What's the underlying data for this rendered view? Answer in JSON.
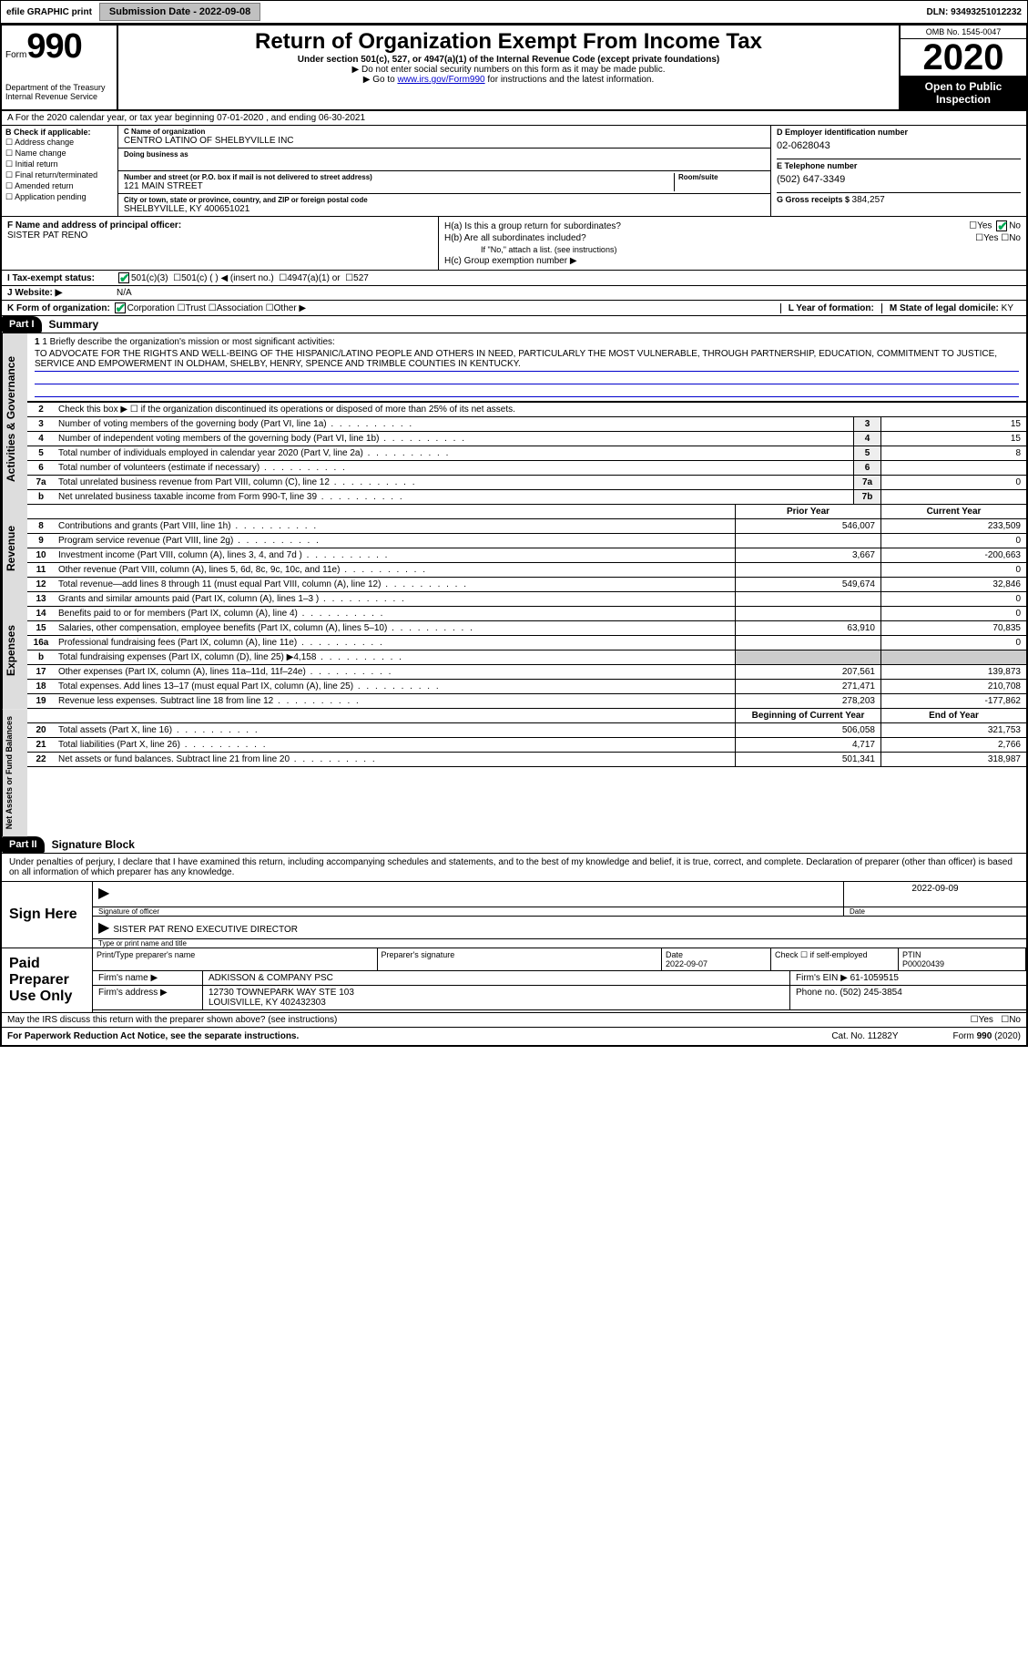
{
  "top": {
    "efile": "efile GRAPHIC print",
    "submission_label": "Submission Date - 2022-09-08",
    "dln": "DLN: 93493251012232"
  },
  "header": {
    "form_prefix": "Form",
    "form_no": "990",
    "dept1": "Department of the Treasury",
    "dept2": "Internal Revenue Service",
    "title": "Return of Organization Exempt From Income Tax",
    "subtitle": "Under section 501(c), 527, or 4947(a)(1) of the Internal Revenue Code (except private foundations)",
    "note1": "▶ Do not enter social security numbers on this form as it may be made public.",
    "note2_pre": "▶ Go to ",
    "note2_link": "www.irs.gov/Form990",
    "note2_post": " for instructions and the latest information.",
    "omb": "OMB No. 1545-0047",
    "year": "2020",
    "open": "Open to Public Inspection"
  },
  "section_a": "A   For the 2020 calendar year, or tax year beginning 07-01-2020    , and ending 06-30-2021",
  "col_b": {
    "hdr": "B Check if applicable:",
    "opts": [
      "Address change",
      "Name change",
      "Initial return",
      "Final return/terminated",
      "Amended return",
      "Application pending"
    ]
  },
  "col_c": {
    "name_lbl": "C Name of organization",
    "name": "CENTRO LATINO OF SHELBYVILLE INC",
    "dba_lbl": "Doing business as",
    "addr_lbl": "Number and street (or P.O. box if mail is not delivered to street address)",
    "room_lbl": "Room/suite",
    "addr": "121 MAIN STREET",
    "city_lbl": "City or town, state or province, country, and ZIP or foreign postal code",
    "city": "SHELBYVILLE, KY  400651021"
  },
  "col_de": {
    "d_lbl": "D Employer identification number",
    "d_val": "02-0628043",
    "e_lbl": "E Telephone number",
    "e_val": "(502) 647-3349",
    "g_lbl": "G Gross receipts $ ",
    "g_val": "384,257"
  },
  "f": {
    "lbl": "F  Name and address of principal officer:",
    "val": "SISTER PAT RENO"
  },
  "h": {
    "ha": "H(a)  Is this a group return for subordinates?",
    "hb": "H(b)  Are all subordinates included?",
    "hb_note": "If \"No,\" attach a list. (see instructions)",
    "hc": "H(c)  Group exemption number ▶",
    "yes": "Yes",
    "no": "No"
  },
  "i": {
    "lbl": "I   Tax-exempt status:",
    "o1": "501(c)(3)",
    "o2": "501(c) (   ) ◀ (insert no.)",
    "o3": "4947(a)(1) or",
    "o4": "527"
  },
  "j": {
    "lbl": "J   Website: ▶",
    "val": "N/A"
  },
  "k": {
    "lbl": "K Form of organization:",
    "opts": [
      "Corporation",
      "Trust",
      "Association",
      "Other ▶"
    ]
  },
  "l": {
    "lbl": "L Year of formation:",
    "val": ""
  },
  "m": {
    "lbl": "M State of legal domicile: ",
    "val": "KY"
  },
  "part1": {
    "hdr": "Part I",
    "title": "Summary",
    "line1_lbl": "1  Briefly describe the organization's mission or most significant activities:",
    "mission": "TO ADVOCATE FOR THE RIGHTS AND WELL-BEING OF THE HISPANIC/LATINO PEOPLE AND OTHERS IN NEED, PARTICULARLY THE MOST VULNERABLE, THROUGH PARTNERSHIP, EDUCATION, COMMITMENT TO JUSTICE, SERVICE AND EMPOWERMENT IN OLDHAM, SHELBY, HENRY, SPENCE AND TRIMBLE COUNTIES IN KENTUCKY.",
    "line2": "Check this box ▶ ☐ if the organization discontinued its operations or disposed of more than 25% of its net assets.",
    "gov_lines": [
      {
        "n": "3",
        "t": "Number of voting members of the governing body (Part VI, line 1a)",
        "b": "3",
        "v": "15"
      },
      {
        "n": "4",
        "t": "Number of independent voting members of the governing body (Part VI, line 1b)",
        "b": "4",
        "v": "15"
      },
      {
        "n": "5",
        "t": "Total number of individuals employed in calendar year 2020 (Part V, line 2a)",
        "b": "5",
        "v": "8"
      },
      {
        "n": "6",
        "t": "Total number of volunteers (estimate if necessary)",
        "b": "6",
        "v": ""
      },
      {
        "n": "7a",
        "t": "Total unrelated business revenue from Part VIII, column (C), line 12",
        "b": "7a",
        "v": "0"
      },
      {
        "n": "b",
        "t": "Net unrelated business taxable income from Form 990-T, line 39",
        "b": "7b",
        "v": ""
      }
    ],
    "py_hdr": "Prior Year",
    "cy_hdr": "Current Year",
    "rev_lines": [
      {
        "n": "8",
        "t": "Contributions and grants (Part VIII, line 1h)",
        "p": "546,007",
        "c": "233,509"
      },
      {
        "n": "9",
        "t": "Program service revenue (Part VIII, line 2g)",
        "p": "",
        "c": "0"
      },
      {
        "n": "10",
        "t": "Investment income (Part VIII, column (A), lines 3, 4, and 7d )",
        "p": "3,667",
        "c": "-200,663"
      },
      {
        "n": "11",
        "t": "Other revenue (Part VIII, column (A), lines 5, 6d, 8c, 9c, 10c, and 11e)",
        "p": "",
        "c": "0"
      },
      {
        "n": "12",
        "t": "Total revenue—add lines 8 through 11 (must equal Part VIII, column (A), line 12)",
        "p": "549,674",
        "c": "32,846"
      }
    ],
    "exp_lines": [
      {
        "n": "13",
        "t": "Grants and similar amounts paid (Part IX, column (A), lines 1–3 )",
        "p": "",
        "c": "0"
      },
      {
        "n": "14",
        "t": "Benefits paid to or for members (Part IX, column (A), line 4)",
        "p": "",
        "c": "0"
      },
      {
        "n": "15",
        "t": "Salaries, other compensation, employee benefits (Part IX, column (A), lines 5–10)",
        "p": "63,910",
        "c": "70,835"
      },
      {
        "n": "16a",
        "t": "Professional fundraising fees (Part IX, column (A), line 11e)",
        "p": "",
        "c": "0"
      },
      {
        "n": "b",
        "t": "Total fundraising expenses (Part IX, column (D), line 25) ▶4,158",
        "p": "—",
        "c": "—"
      },
      {
        "n": "17",
        "t": "Other expenses (Part IX, column (A), lines 11a–11d, 11f–24e)",
        "p": "207,561",
        "c": "139,873"
      },
      {
        "n": "18",
        "t": "Total expenses. Add lines 13–17 (must equal Part IX, column (A), line 25)",
        "p": "271,471",
        "c": "210,708"
      },
      {
        "n": "19",
        "t": "Revenue less expenses. Subtract line 18 from line 12",
        "p": "278,203",
        "c": "-177,862"
      }
    ],
    "boy_hdr": "Beginning of Current Year",
    "eoy_hdr": "End of Year",
    "na_lines": [
      {
        "n": "20",
        "t": "Total assets (Part X, line 16)",
        "p": "506,058",
        "c": "321,753"
      },
      {
        "n": "21",
        "t": "Total liabilities (Part X, line 26)",
        "p": "4,717",
        "c": "2,766"
      },
      {
        "n": "22",
        "t": "Net assets or fund balances. Subtract line 21 from line 20",
        "p": "501,341",
        "c": "318,987"
      }
    ],
    "side_gov": "Activities & Governance",
    "side_rev": "Revenue",
    "side_exp": "Expenses",
    "side_na": "Net Assets or Fund Balances"
  },
  "part2": {
    "hdr": "Part II",
    "title": "Signature Block",
    "decl": "Under penalties of perjury, I declare that I have examined this return, including accompanying schedules and statements, and to the best of my knowledge and belief, it is true, correct, and complete. Declaration of preparer (other than officer) is based on all information of which preparer has any knowledge.",
    "sign_here": "Sign Here",
    "sig_of_officer": "Signature of officer",
    "sig_date": "2022-09-09",
    "date_lbl": "Date",
    "officer_name": "SISTER PAT RENO  EXECUTIVE DIRECTOR",
    "type_name_lbl": "Type or print name and title",
    "paid_prep": "Paid Preparer Use Only",
    "prep_hdrs": [
      "Print/Type preparer's name",
      "Preparer's signature",
      "Date",
      "Check ☐ if self-employed",
      "PTIN"
    ],
    "prep_date": "2022-09-07",
    "ptin": "P00020439",
    "firm_name_lbl": "Firm's name    ▶",
    "firm_name": "ADKISSON & COMPANY PSC",
    "firm_ein_lbl": "Firm's EIN ▶",
    "firm_ein": "61-1059515",
    "firm_addr_lbl": "Firm's address ▶",
    "firm_addr1": "12730 TOWNEPARK WAY STE 103",
    "firm_addr2": "LOUISVILLE, KY  402432303",
    "phone_lbl": "Phone no. ",
    "phone": "(502) 245-3854",
    "may_irs": "May the IRS discuss this return with the preparer shown above? (see instructions)"
  },
  "footer": {
    "pra": "For Paperwork Reduction Act Notice, see the separate instructions.",
    "cat": "Cat. No. 11282Y",
    "form": "Form 990 (2020)"
  }
}
